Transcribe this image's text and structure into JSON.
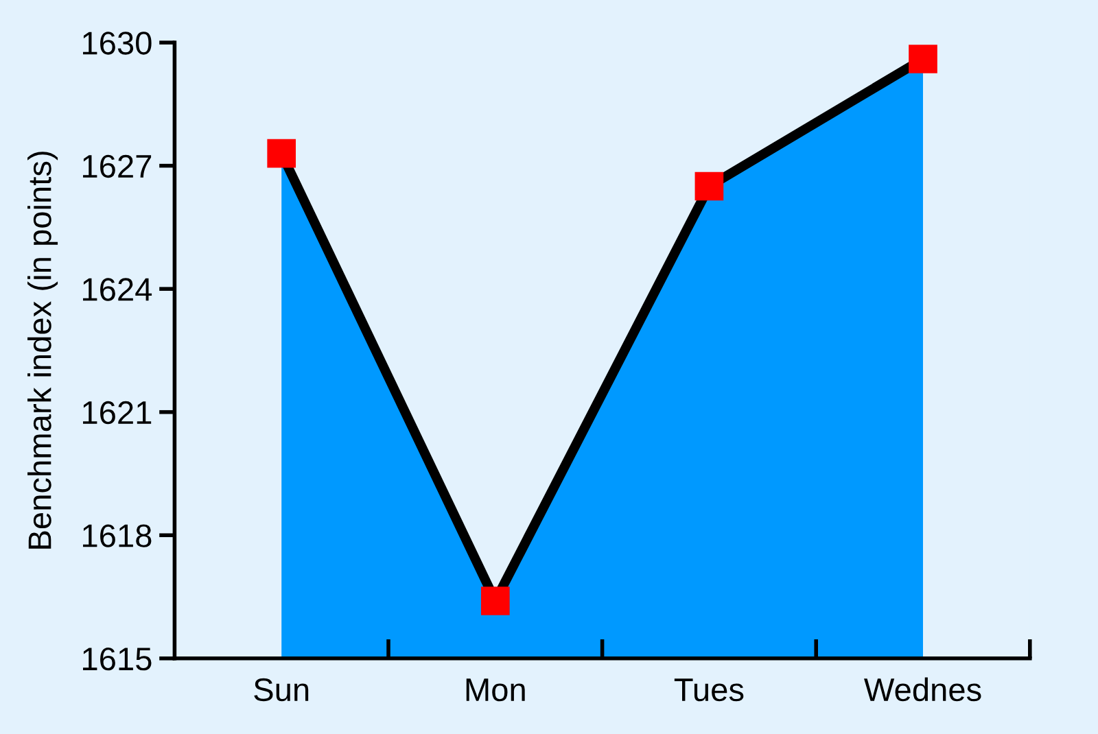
{
  "chart_data": {
    "type": "area",
    "ylabel": "Benchmark index (in points)",
    "categories": [
      "Sun",
      "Mon",
      "Tues",
      "Wednes"
    ],
    "series": [
      {
        "color": "#0099ff",
        "values": [
          1627.3,
          1616.4,
          1626.5,
          1629.6
        ]
      }
    ],
    "ylim": [
      1615,
      1630
    ],
    "yticks": [
      1615,
      1618,
      1621,
      1624,
      1627,
      1630
    ],
    "marker": "square",
    "grid": false,
    "legend": false
  }
}
